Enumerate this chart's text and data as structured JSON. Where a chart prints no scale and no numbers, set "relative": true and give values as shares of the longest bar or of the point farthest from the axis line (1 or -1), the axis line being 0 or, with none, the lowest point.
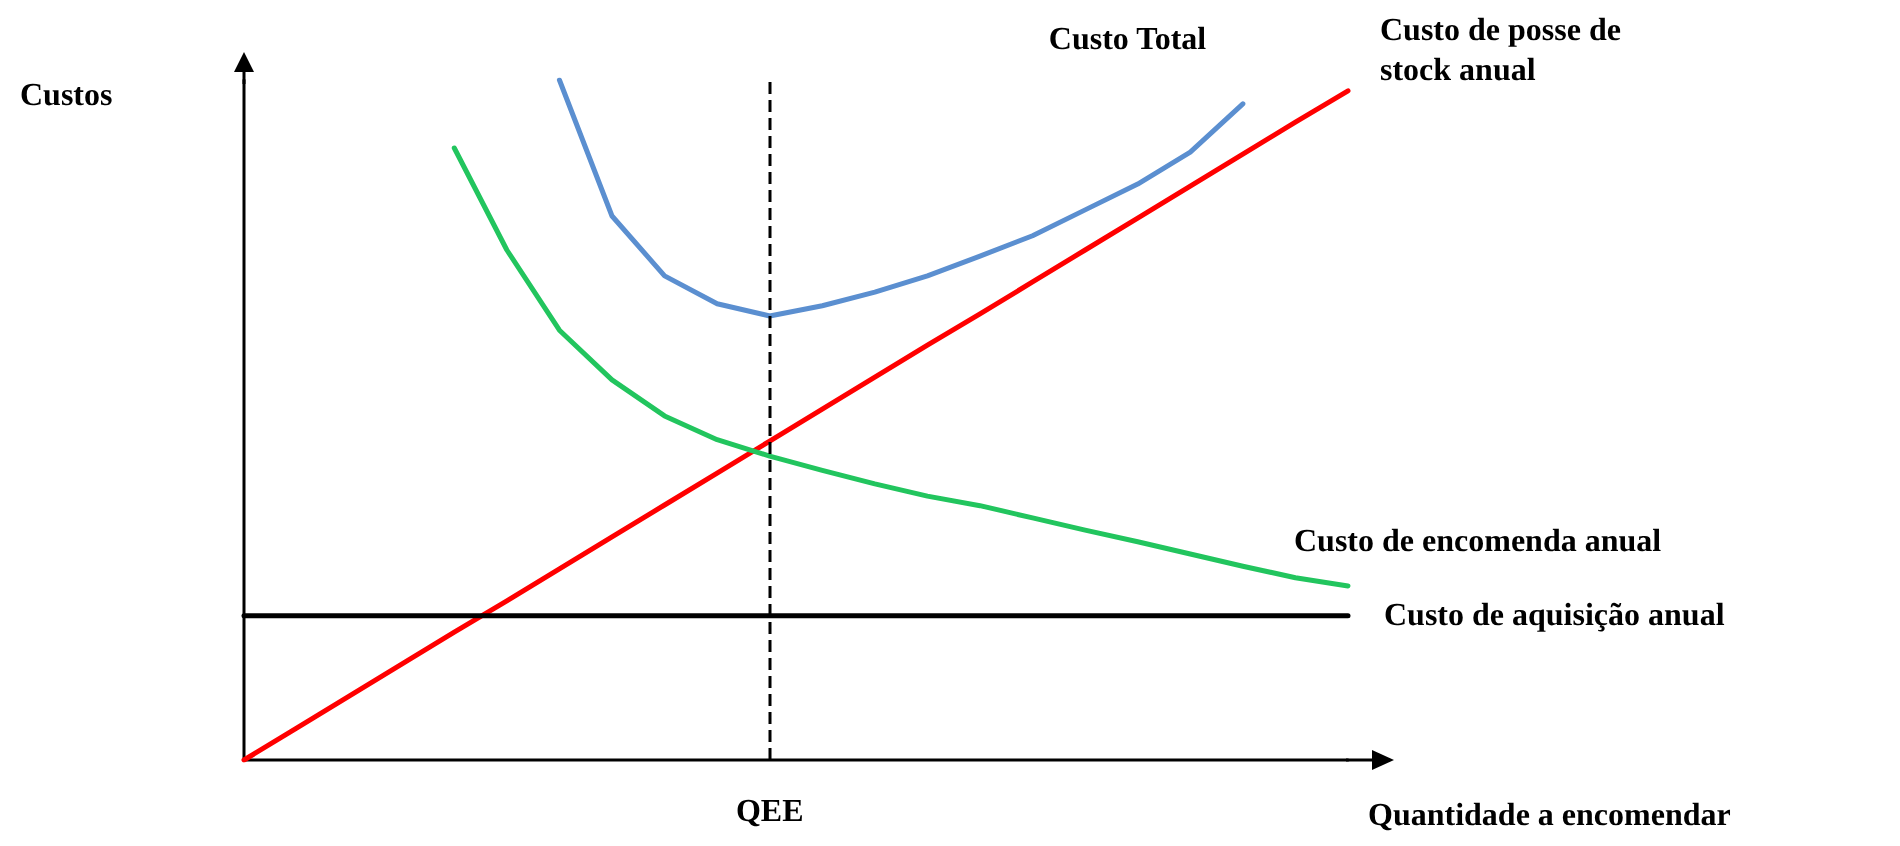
{
  "chart_data": {
    "type": "line",
    "relative": true,
    "xlabel": "Quantidade a encomendar",
    "ylabel": "Custos",
    "tick_labels": false,
    "grid": false,
    "legend": false,
    "marker": "none",
    "line_style": "solid",
    "categories": [
      null,
      null,
      null,
      null,
      null,
      null,
      null,
      null,
      null,
      null,
      null,
      null,
      null,
      null,
      null,
      null,
      null,
      null,
      null,
      null,
      null,
      null
    ],
    "series": [
      {
        "name": "Custo Total",
        "color": "#5b8fd0",
        "values": [
          null,
          null,
          null,
          null,
          null,
          null,
          1,
          0.8,
          0.712,
          0.671,
          0.653,
          0.668,
          0.688,
          0.712,
          0.741,
          0.771,
          0.809,
          0.847,
          0.894,
          0.965,
          null,
          null
        ]
      },
      {
        "name": "Custo de posse de stock anual",
        "color": "#ff0000",
        "values": [
          0,
          0.047,
          0.094,
          0.141,
          0.188,
          0.234,
          0.281,
          0.328,
          0.375,
          0.422,
          0.469,
          0.516,
          0.563,
          0.61,
          0.656,
          0.703,
          0.75,
          0.797,
          0.844,
          0.891,
          0.938,
          0.984
        ]
      },
      {
        "name": "Custo de encomenda anual",
        "color": "#22c55e",
        "values": [
          null,
          null,
          null,
          null,
          0.9,
          0.75,
          0.632,
          0.559,
          0.506,
          0.471,
          0.447,
          0.426,
          0.406,
          0.388,
          0.374,
          0.356,
          0.338,
          0.321,
          0.303,
          0.285,
          0.268,
          0.256
        ]
      },
      {
        "name": "Custo de aquisição anual",
        "color": "#000000",
        "values": [
          0.212,
          0.212,
          0.212,
          0.212,
          0.212,
          0.212,
          0.212,
          0.212,
          0.212,
          0.212,
          0.212,
          0.212,
          0.212,
          0.212,
          0.212,
          0.212,
          0.212,
          0.212,
          0.212,
          0.212,
          0.212,
          0.212
        ]
      }
    ],
    "annotations": [
      "QEE"
    ]
  }
}
